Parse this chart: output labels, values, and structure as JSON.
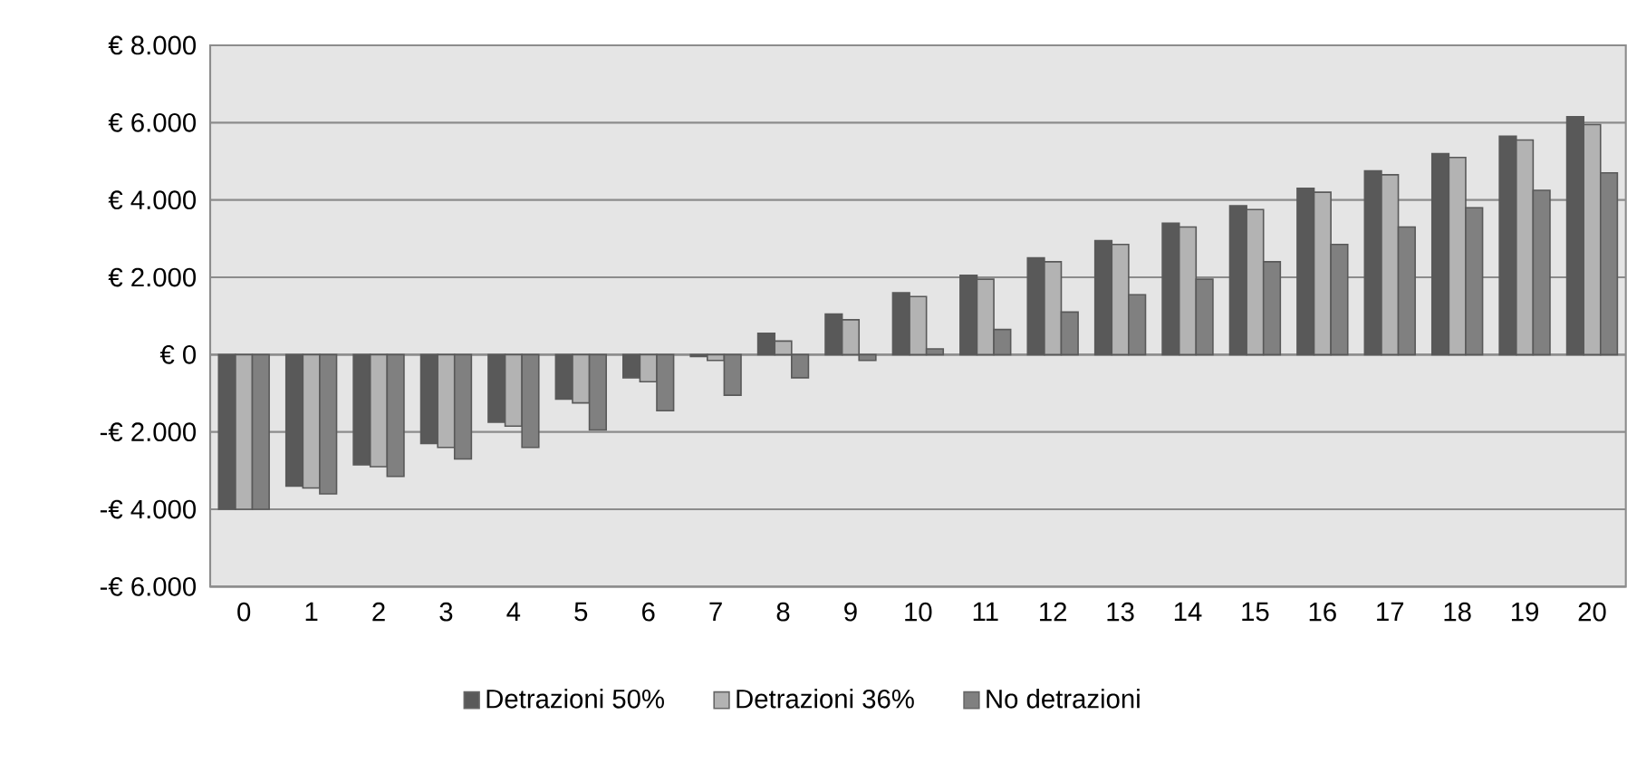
{
  "chart_data": {
    "type": "bar",
    "categories": [
      "0",
      "1",
      "2",
      "3",
      "4",
      "5",
      "6",
      "7",
      "8",
      "9",
      "10",
      "11",
      "12",
      "13",
      "14",
      "15",
      "16",
      "17",
      "18",
      "19",
      "20"
    ],
    "series": [
      {
        "name": "Detrazioni 50%",
        "color": "#595959",
        "values": [
          -4000,
          -3400,
          -2850,
          -2300,
          -1750,
          -1150,
          -600,
          -50,
          550,
          1050,
          1600,
          2050,
          2500,
          2950,
          3400,
          3850,
          4300,
          4750,
          5200,
          5650,
          6150
        ]
      },
      {
        "name": "Detrazioni 36%",
        "color": "#b3b3b3",
        "values": [
          -4000,
          -3450,
          -2900,
          -2400,
          -1850,
          -1250,
          -700,
          -150,
          350,
          900,
          1500,
          1950,
          2400,
          2850,
          3300,
          3750,
          4200,
          4650,
          5100,
          5550,
          5950
        ]
      },
      {
        "name": "No detrazioni",
        "color": "#808080",
        "values": [
          -4000,
          -3600,
          -3150,
          -2700,
          -2400,
          -1950,
          -1450,
          -1050,
          -600,
          -150,
          150,
          650,
          1100,
          1550,
          1950,
          2400,
          2850,
          3300,
          3800,
          4250,
          4700
        ]
      }
    ],
    "ylim": [
      -6000,
      8000
    ],
    "yticks": [
      {
        "value": -6000,
        "label": "-€ 6.000"
      },
      {
        "value": -4000,
        "label": "-€ 4.000"
      },
      {
        "value": -2000,
        "label": "-€ 2.000"
      },
      {
        "value": 0,
        "label": "€ 0"
      },
      {
        "value": 2000,
        "label": "€ 2.000"
      },
      {
        "value": 4000,
        "label": "€ 4.000"
      },
      {
        "value": 6000,
        "label": "€ 6.000"
      },
      {
        "value": 8000,
        "label": "€ 8.000"
      }
    ],
    "grid": "y",
    "legend": "bottom"
  }
}
